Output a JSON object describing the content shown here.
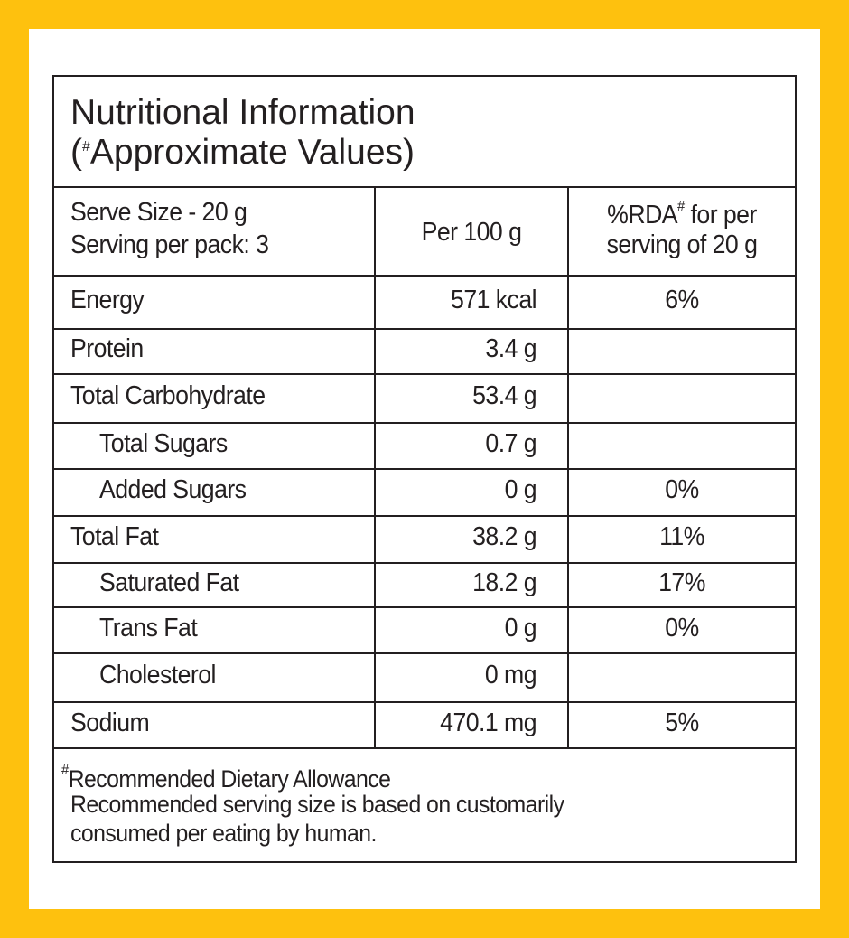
{
  "title": {
    "line1": "Nutritional Information",
    "open": "(",
    "mark": "#",
    "rest": "Approximate Values)"
  },
  "header": {
    "serve_size": "Serve Size - 20 g",
    "servings": "Serving per pack: 3",
    "per_100g": "Per 100 g",
    "rda_a": "%RDA",
    "rda_mark": "#",
    "rda_b": " for per",
    "rda_c": "serving of 20 g"
  },
  "rows": [
    {
      "nutrient": "Energy",
      "per_100g": "571 kcal",
      "rda": "6%"
    },
    {
      "nutrient": "Protein",
      "per_100g": "3.4 g"
    },
    {
      "nutrient": "Total Carbohydrate",
      "per_100g": "53.4 g"
    },
    {
      "nutrient": "Total Sugars",
      "per_100g": "0.7 g",
      "indent": true
    },
    {
      "nutrient": "Added Sugars",
      "per_100g": "0 g",
      "rda": "0%",
      "indent": true
    },
    {
      "nutrient": "Total Fat",
      "per_100g": "38.2 g",
      "rda": "11%"
    },
    {
      "nutrient": "Saturated Fat",
      "per_100g": "18.2 g",
      "rda": "17%",
      "indent": true
    },
    {
      "nutrient": "Trans Fat",
      "per_100g": "0 g",
      "rda": "0%",
      "indent": true
    },
    {
      "nutrient": "Cholesterol",
      "per_100g": "0 mg",
      "indent": true
    },
    {
      "nutrient": "Sodium",
      "per_100g": "470.1 mg",
      "rda": "5%"
    }
  ],
  "footer": {
    "mark": "#",
    "line1": "Recommended Dietary Allowance",
    "line2": "Recommended serving size is based on customarily",
    "line3": "consumed per eating by human."
  }
}
